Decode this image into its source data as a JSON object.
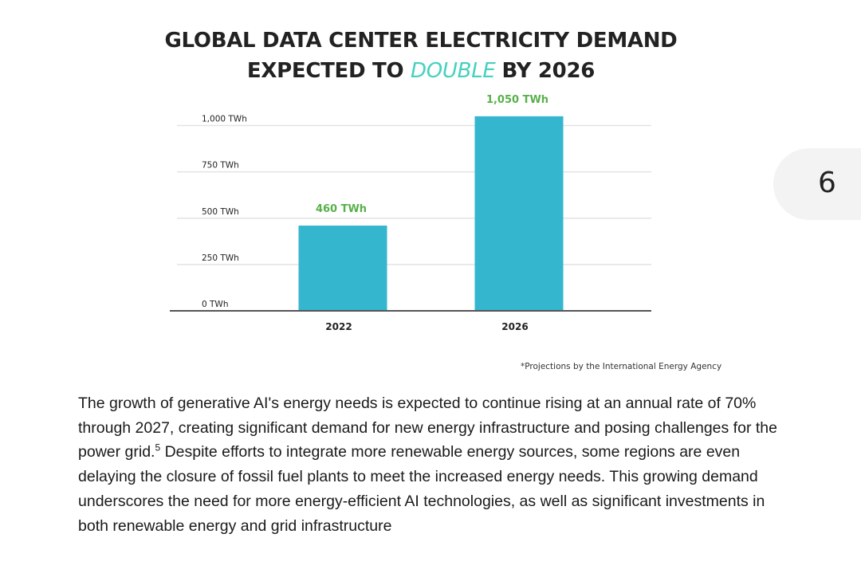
{
  "page": {
    "number": "6"
  },
  "chart": {
    "title_line1": "GLOBAL DATA CENTER ELECTRICITY DEMAND",
    "title_line2_prefix": "EXPECTED TO ",
    "title_line2_highlight": "DOUBLE",
    "title_line2_suffix": "BY 2026",
    "footnote": "*Projections by the International Energy Agency"
  },
  "chart_data": {
    "type": "bar",
    "title": "GLOBAL DATA CENTER ELECTRICITY DEMAND EXPECTED TO DOUBLE BY 2026",
    "categories": [
      "2022",
      "2026"
    ],
    "values": [
      460,
      1050
    ],
    "data_labels": [
      "460 TWh",
      "1,050 TWh"
    ],
    "yticks": [
      0,
      250,
      500,
      750,
      1000
    ],
    "ytick_labels": [
      "0 TWh",
      "250 TWh",
      "500 TWh",
      "750 TWh",
      "1,000 TWh"
    ],
    "ylim": [
      0,
      1050
    ],
    "grid": true,
    "bar_color": "#35b6cf",
    "label_color": "#58b04a",
    "xlabel": "",
    "ylabel": ""
  },
  "body": {
    "text_before_sup": "The growth of generative AI's energy needs is expected to continue rising at an annual rate of 70% through 2027, creating significant demand for new energy infrastructure and posing challenges for the power grid.",
    "footnote_ref": "5",
    "text_after_sup": " Despite efforts to integrate more renewable energy sources, some regions are even delaying the closure of fossil fuel plants to meet the increased energy needs. This growing demand underscores the need for more energy-efficient AI technologies, as well as significant investments in both renewable energy and grid infrastructure"
  },
  "colors": {
    "accent": "#45d1bf",
    "bar": "#35b6cf",
    "data_label": "#58b04a",
    "page_tab": "#f3f3f3"
  }
}
